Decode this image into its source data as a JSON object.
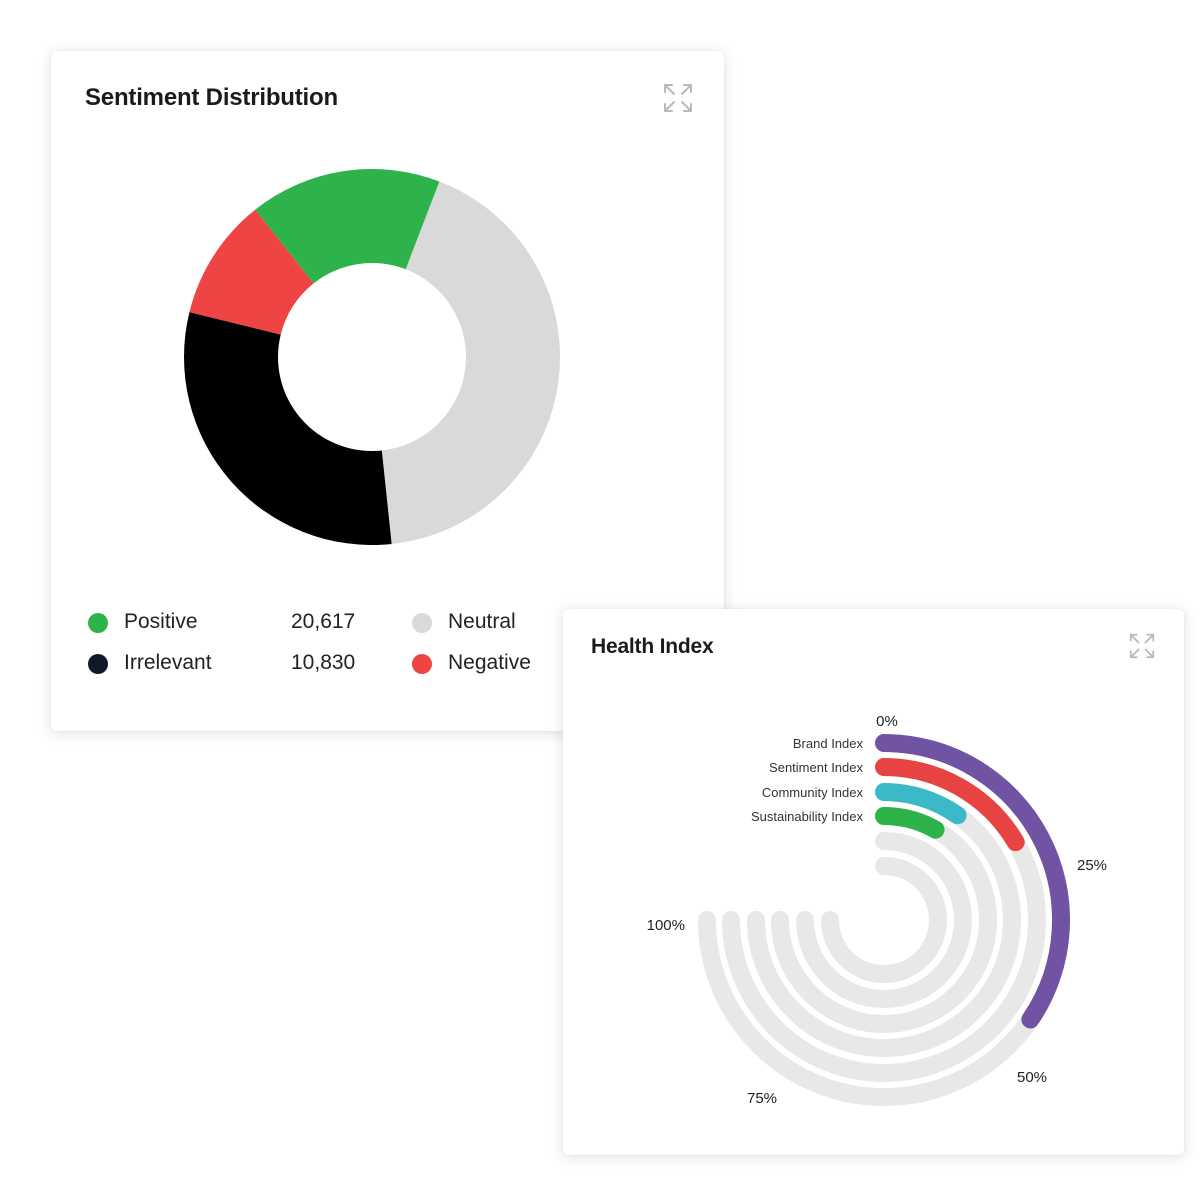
{
  "sentiment": {
    "title": "Sentiment Distribution",
    "expand_icon": "expand-arrows-icon",
    "chart_data": {
      "type": "pie",
      "donut": true,
      "slices": [
        {
          "name": "Neutral",
          "percent": 42.5,
          "color": "#d9d9d9"
        },
        {
          "name": "Irrelevant",
          "percent": 30.5,
          "color": "#000000"
        },
        {
          "name": "Negative",
          "percent": 10.5,
          "color": "#ef4444"
        },
        {
          "name": "Positive",
          "percent": 16.5,
          "color": "#2eb24b"
        }
      ]
    },
    "legend": [
      {
        "label": "Positive",
        "value": "20,617",
        "color": "#2eb24b"
      },
      {
        "label": "Neutral",
        "value": "",
        "color": "#d9d9d9"
      },
      {
        "label": "Irrelevant",
        "value": "10,830",
        "color": "#111827"
      },
      {
        "label": "Negative",
        "value": "",
        "color": "#ef4444"
      }
    ]
  },
  "health": {
    "title": "Health Index",
    "expand_icon": "expand-arrows-icon",
    "chart_data": {
      "type": "radial-bar",
      "axis_ticks": [
        "0%",
        "25%",
        "50%",
        "75%",
        "100%"
      ],
      "track_color": "#e8e8e8",
      "series": [
        {
          "name": "Brand Index",
          "value": 46,
          "color": "#7153a3"
        },
        {
          "name": "Sentiment Index",
          "value": 22,
          "color": "#e84343"
        },
        {
          "name": "Community Index",
          "value": 13,
          "color": "#3bb9c7"
        },
        {
          "name": "Sustainability Index",
          "value": 11,
          "color": "#2eb24b"
        },
        {
          "name": "",
          "value": 0,
          "color": "#e8e8e8"
        },
        {
          "name": "",
          "value": 0,
          "color": "#e8e8e8"
        }
      ]
    }
  }
}
